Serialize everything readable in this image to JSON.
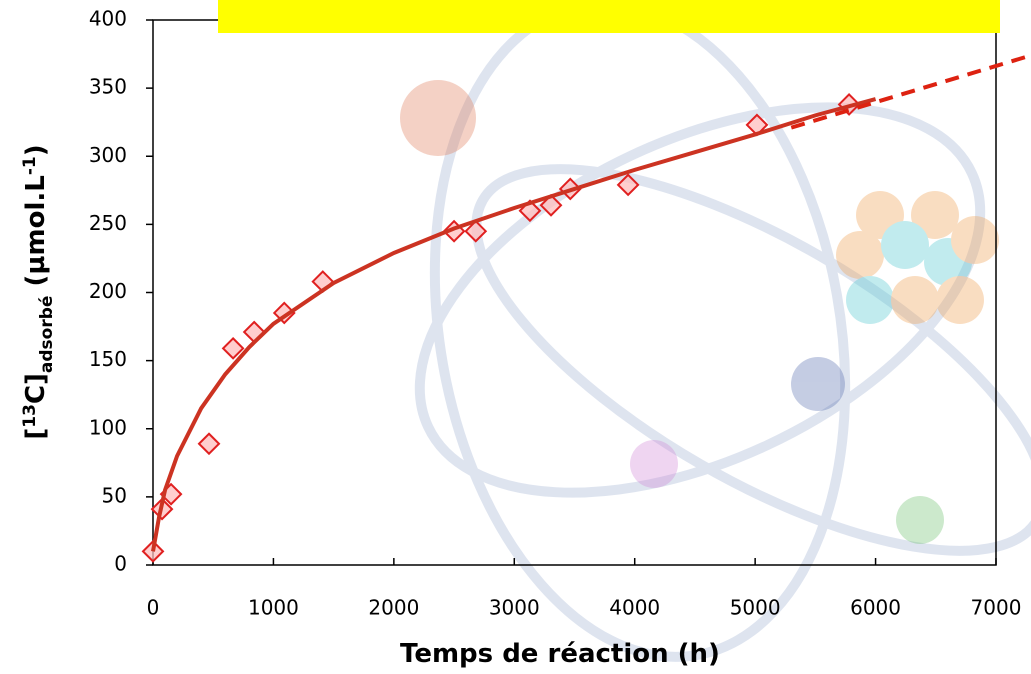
{
  "chart_data": {
    "type": "scatter",
    "xlabel": "Temps de réaction (h)",
    "ylabel": [
      "[",
      "13",
      "C]",
      "adsorbé",
      " (µmol.L",
      "-1",
      ")"
    ],
    "xlim": [
      0,
      7000
    ],
    "xticks": [
      0,
      1000,
      2000,
      3000,
      4000,
      5000,
      6000,
      7000
    ],
    "ylim": [
      0,
      400
    ],
    "yticks": [
      0,
      50,
      100,
      150,
      200,
      250,
      300,
      350,
      400
    ],
    "series": [
      {
        "type": "scatter",
        "color": "#e02020",
        "x": [
          0,
          75,
          150,
          465,
          665,
          840,
          1090,
          1410,
          2500,
          2680,
          3130,
          3305,
          3465,
          3945,
          5015,
          5780
        ],
        "values": [
          10,
          41,
          52,
          89,
          159,
          171,
          185,
          208,
          245,
          245,
          260,
          264,
          276,
          279,
          323,
          338
        ]
      },
      {
        "type": "line",
        "color": "#cc3322",
        "x": [
          0,
          50,
          100,
          200,
          400,
          600,
          800,
          1000,
          1500,
          2000,
          2500,
          3000,
          3500,
          4000,
          4500,
          5000,
          5500,
          6000
        ],
        "values": [
          10,
          35,
          55,
          80,
          115,
          140,
          160,
          177,
          207,
          229,
          247,
          262,
          276,
          290,
          303,
          316,
          330,
          342
        ]
      },
      {
        "type": "line",
        "dash": true,
        "color": "#dd2211",
        "x": [
          5300,
          7290
        ],
        "values": [
          321,
          374
        ]
      }
    ]
  }
}
